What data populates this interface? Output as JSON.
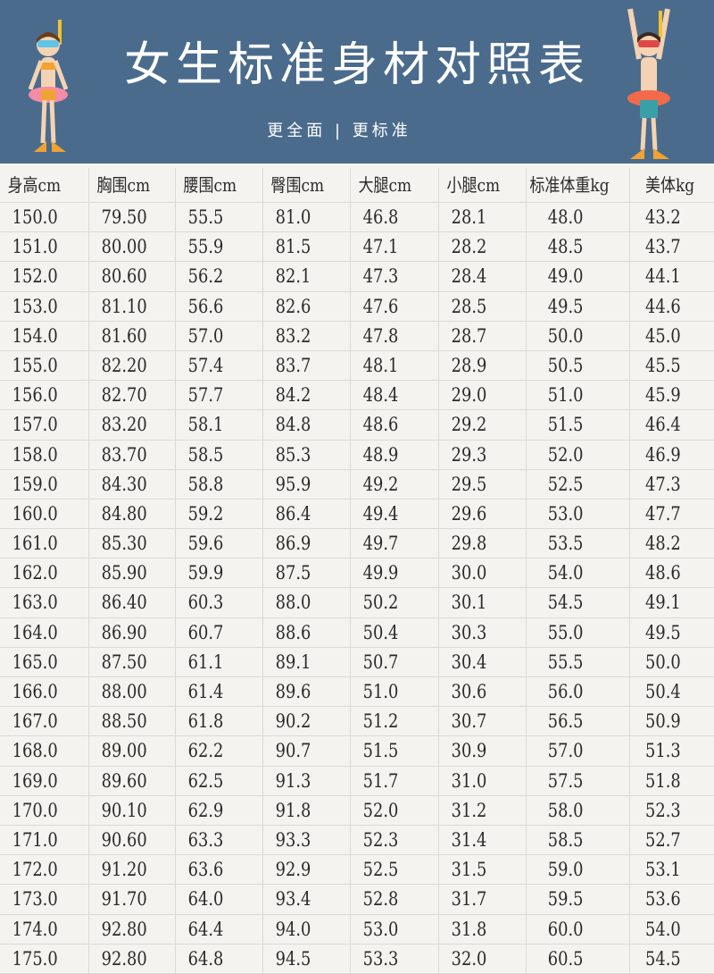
{
  "header": {
    "title": "女生标准身材对照表",
    "subtitle": "更全面 | 更标准",
    "background_color": "#4a6b8c"
  },
  "table": {
    "columns": [
      "身高cm",
      "胸围cm",
      "腰围cm",
      "臀围cm",
      "大腿cm",
      "小腿cm",
      "标准体重kg",
      "美体kg"
    ],
    "rows": [
      [
        "150.0",
        "79.50",
        "55.5",
        "81.0",
        "46.8",
        "28.1",
        "48.0",
        "43.2"
      ],
      [
        "151.0",
        "80.00",
        "55.9",
        "81.5",
        "47.1",
        "28.2",
        "48.5",
        "43.7"
      ],
      [
        "152.0",
        "80.60",
        "56.2",
        "82.1",
        "47.3",
        "28.4",
        "49.0",
        "44.1"
      ],
      [
        "153.0",
        "81.10",
        "56.6",
        "82.6",
        "47.6",
        "28.5",
        "49.5",
        "44.6"
      ],
      [
        "154.0",
        "81.60",
        "57.0",
        "83.2",
        "47.8",
        "28.7",
        "50.0",
        "45.0"
      ],
      [
        "155.0",
        "82.20",
        "57.4",
        "83.7",
        "48.1",
        "28.9",
        "50.5",
        "45.5"
      ],
      [
        "156.0",
        "82.70",
        "57.7",
        "84.2",
        "48.4",
        "29.0",
        "51.0",
        "45.9"
      ],
      [
        "157.0",
        "83.20",
        "58.1",
        "84.8",
        "48.6",
        "29.2",
        "51.5",
        "46.4"
      ],
      [
        "158.0",
        "83.70",
        "58.5",
        "85.3",
        "48.9",
        "29.3",
        "52.0",
        "46.9"
      ],
      [
        "159.0",
        "84.30",
        "58.8",
        "95.9",
        "49.2",
        "29.5",
        "52.5",
        "47.3"
      ],
      [
        "160.0",
        "84.80",
        "59.2",
        "86.4",
        "49.4",
        "29.6",
        "53.0",
        "47.7"
      ],
      [
        "161.0",
        "85.30",
        "59.6",
        "86.9",
        "49.7",
        "29.8",
        "53.5",
        "48.2"
      ],
      [
        "162.0",
        "85.90",
        "59.9",
        "87.5",
        "49.9",
        "30.0",
        "54.0",
        "48.6"
      ],
      [
        "163.0",
        "86.40",
        "60.3",
        "88.0",
        "50.2",
        "30.1",
        "54.5",
        "49.1"
      ],
      [
        "164.0",
        "86.90",
        "60.7",
        "88.6",
        "50.4",
        "30.3",
        "55.0",
        "49.5"
      ],
      [
        "165.0",
        "87.50",
        "61.1",
        "89.1",
        "50.7",
        "30.4",
        "55.5",
        "50.0"
      ],
      [
        "166.0",
        "88.00",
        "61.4",
        "89.6",
        "51.0",
        "30.6",
        "56.0",
        "50.4"
      ],
      [
        "167.0",
        "88.50",
        "61.8",
        "90.2",
        "51.2",
        "30.7",
        "56.5",
        "50.9"
      ],
      [
        "168.0",
        "89.00",
        "62.2",
        "90.7",
        "51.5",
        "30.9",
        "57.0",
        "51.3"
      ],
      [
        "169.0",
        "89.60",
        "62.5",
        "91.3",
        "51.7",
        "31.0",
        "57.5",
        "51.8"
      ],
      [
        "170.0",
        "90.10",
        "62.9",
        "91.8",
        "52.0",
        "31.2",
        "58.0",
        "52.3"
      ],
      [
        "171.0",
        "90.60",
        "63.3",
        "93.3",
        "52.3",
        "31.4",
        "58.5",
        "52.7"
      ],
      [
        "172.0",
        "91.20",
        "63.6",
        "92.9",
        "52.5",
        "31.5",
        "59.0",
        "53.1"
      ],
      [
        "173.0",
        "91.70",
        "64.0",
        "93.4",
        "52.8",
        "31.7",
        "59.5",
        "53.6"
      ],
      [
        "174.0",
        "92.80",
        "64.4",
        "94.0",
        "53.0",
        "31.8",
        "60.0",
        "54.0"
      ],
      [
        "175.0",
        "92.80",
        "64.8",
        "94.5",
        "53.3",
        "32.0",
        "60.5",
        "54.5"
      ]
    ]
  }
}
